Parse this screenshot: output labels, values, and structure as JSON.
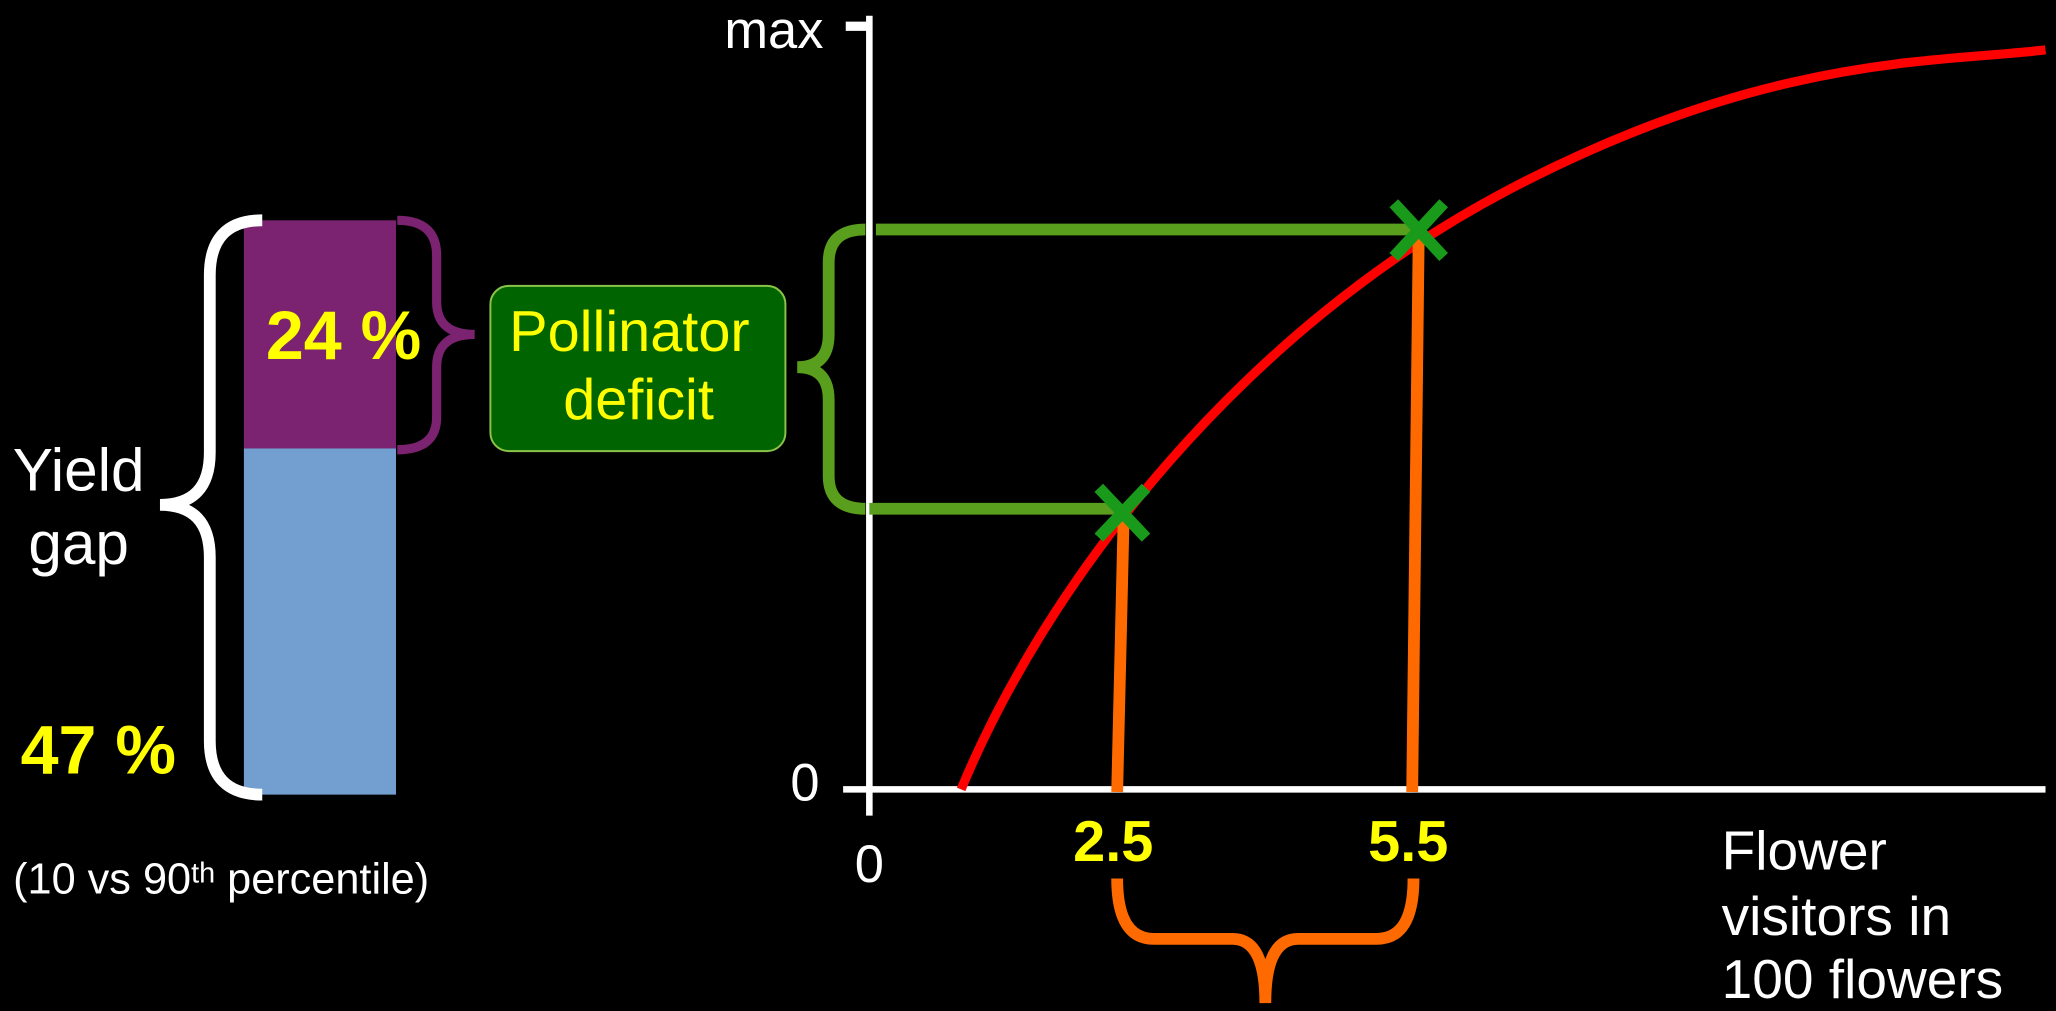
{
  "axis": {
    "y_top": "max",
    "y_zero": "0",
    "x_zero": "0",
    "x_label": [
      "Flower",
      "visitors in",
      "100 flowers"
    ],
    "marks": [
      "2.5",
      "5.5"
    ]
  },
  "yield_gap": {
    "label": [
      "Yield",
      "gap"
    ],
    "total": "47 %",
    "pollinator_share": "24 %",
    "note": [
      "(10 vs 90",
      "th",
      " percentile)"
    ]
  },
  "deficit_box": {
    "label": [
      "Pollinator",
      "deficit"
    ]
  }
}
